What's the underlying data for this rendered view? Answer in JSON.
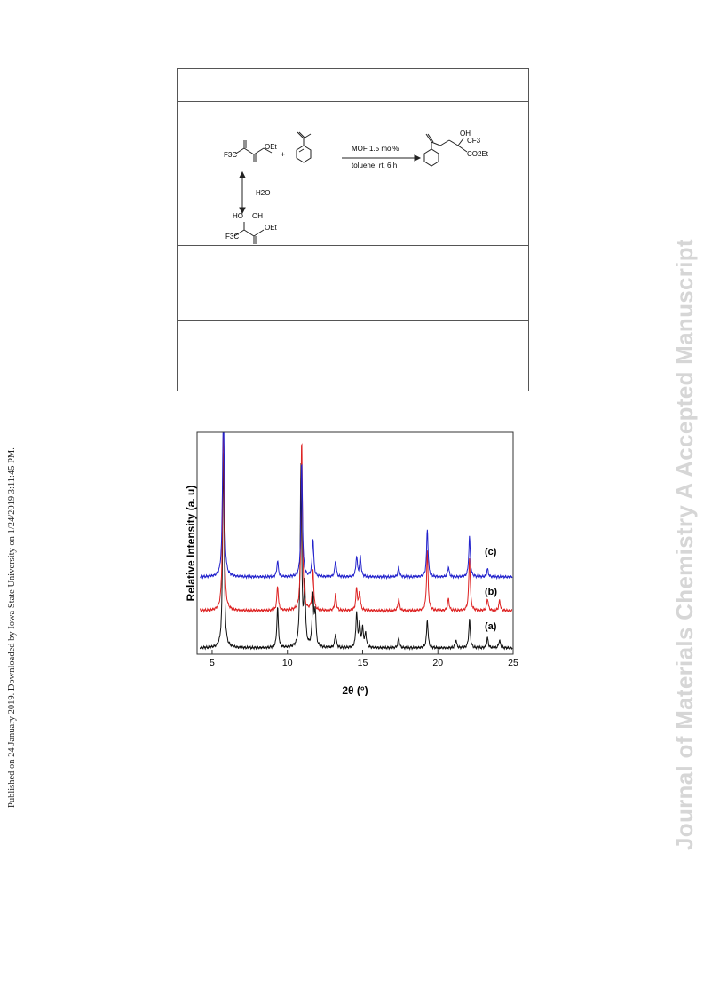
{
  "side_note": "Published on 24 January 2019. Downloaded by Iowa State University on 1/24/2019 3:11:45 PM.",
  "watermark": "Journal of Materials Chemistry A Accepted Manuscript",
  "scheme": {
    "reagent_cf3": "F3C",
    "reagent_oet": "OEt",
    "plus": "+",
    "conditions_top": "MOF 1.5 mol%",
    "conditions_bottom": "toluene, rt, 6 h",
    "water": "H2O",
    "hydrate_ho": "HO",
    "hydrate_oh": "OH",
    "product_oh": "OH",
    "product_cf3": "CF3",
    "product_co2et": "CO2Et"
  },
  "chart_data": {
    "type": "line",
    "xlabel": "2θ (°)",
    "ylabel": "Relative Intensity (a. u)",
    "xlim": [
      4,
      25
    ],
    "x_ticks": [
      "5",
      "10",
      "15",
      "20",
      "25"
    ],
    "series": [
      {
        "name": "(a)",
        "color": "#111111",
        "baseline": 0,
        "peaks": [
          [
            5.75,
            1.0
          ],
          [
            9.35,
            0.2
          ],
          [
            10.9,
            0.9
          ],
          [
            11.15,
            0.3
          ],
          [
            11.7,
            0.25
          ],
          [
            11.85,
            0.17
          ],
          [
            13.2,
            0.07
          ],
          [
            14.6,
            0.17
          ],
          [
            14.8,
            0.11
          ],
          [
            15.0,
            0.09
          ],
          [
            15.2,
            0.07
          ],
          [
            17.4,
            0.05
          ],
          [
            19.3,
            0.14
          ],
          [
            21.2,
            0.04
          ],
          [
            22.1,
            0.14
          ],
          [
            23.3,
            0.05
          ],
          [
            24.1,
            0.04
          ]
        ]
      },
      {
        "name": "(b)",
        "color": "#dd2222",
        "baseline": 42,
        "peaks": [
          [
            5.75,
            1.0
          ],
          [
            9.35,
            0.12
          ],
          [
            10.95,
            0.85
          ],
          [
            11.7,
            0.2
          ],
          [
            13.2,
            0.08
          ],
          [
            14.6,
            0.11
          ],
          [
            14.8,
            0.09
          ],
          [
            17.4,
            0.06
          ],
          [
            19.3,
            0.3
          ],
          [
            20.7,
            0.06
          ],
          [
            22.1,
            0.26
          ],
          [
            23.3,
            0.06
          ],
          [
            24.1,
            0.05
          ]
        ]
      },
      {
        "name": "(c)",
        "color": "#2222cc",
        "baseline": 80,
        "peaks": [
          [
            5.75,
            1.0
          ],
          [
            9.35,
            0.08
          ],
          [
            10.95,
            0.57
          ],
          [
            11.7,
            0.19
          ],
          [
            13.2,
            0.08
          ],
          [
            14.6,
            0.1
          ],
          [
            14.85,
            0.1
          ],
          [
            17.4,
            0.05
          ],
          [
            19.3,
            0.24
          ],
          [
            20.7,
            0.05
          ],
          [
            22.1,
            0.2
          ],
          [
            23.3,
            0.04
          ]
        ]
      }
    ]
  }
}
